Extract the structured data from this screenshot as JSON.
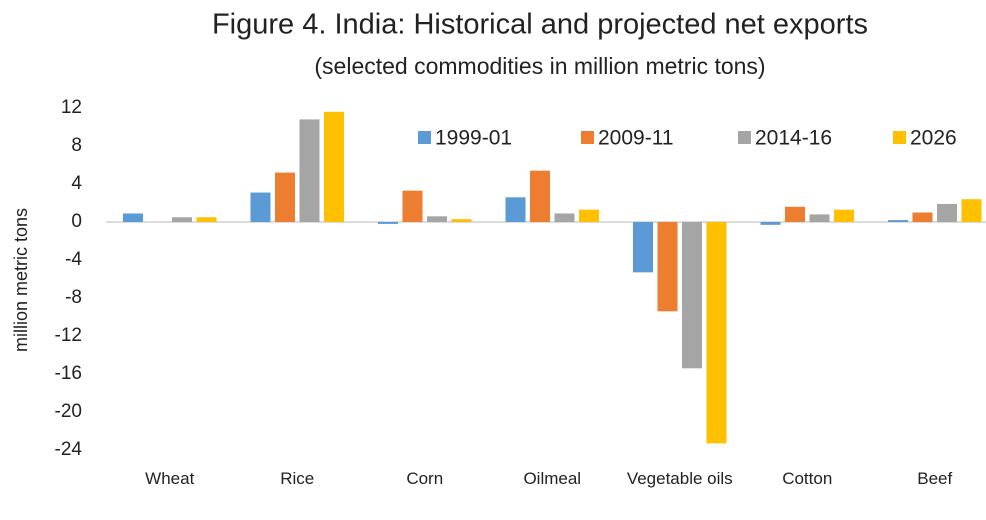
{
  "chart_data": {
    "type": "bar",
    "title": "Figure 4. India: Historical and projected net exports",
    "subtitle": "(selected commodities in million metric tons)",
    "y_label": "million metric tons",
    "categories": [
      "Wheat",
      "Rice",
      "Corn",
      "Oilmeal",
      "Vegetable oils",
      "Cotton",
      "Beef"
    ],
    "series": [
      {
        "name": "1999-01",
        "color": "#5b9bd5",
        "values": [
          0.9,
          3.1,
          -0.2,
          2.6,
          -5.3,
          -0.3,
          0.2
        ]
      },
      {
        "name": "2009-11",
        "color": "#ed7d31",
        "values": [
          0,
          5.2,
          3.3,
          5.4,
          -9.4,
          1.6,
          1.0
        ]
      },
      {
        "name": "2014-16",
        "color": "#a5a5a5",
        "values": [
          0.5,
          10.8,
          0.6,
          0.9,
          -15.4,
          0.8,
          1.9
        ]
      },
      {
        "name": "2026",
        "color": "#ffc000",
        "values": [
          0.5,
          11.6,
          0.3,
          1.3,
          -23.3,
          1.3,
          2.4
        ]
      }
    ],
    "ylim": [
      -24,
      12
    ],
    "yticks": [
      -24,
      -20,
      -16,
      -12,
      -8,
      -4,
      0,
      4,
      8,
      12
    ],
    "grid": false,
    "legend": "top-right"
  }
}
